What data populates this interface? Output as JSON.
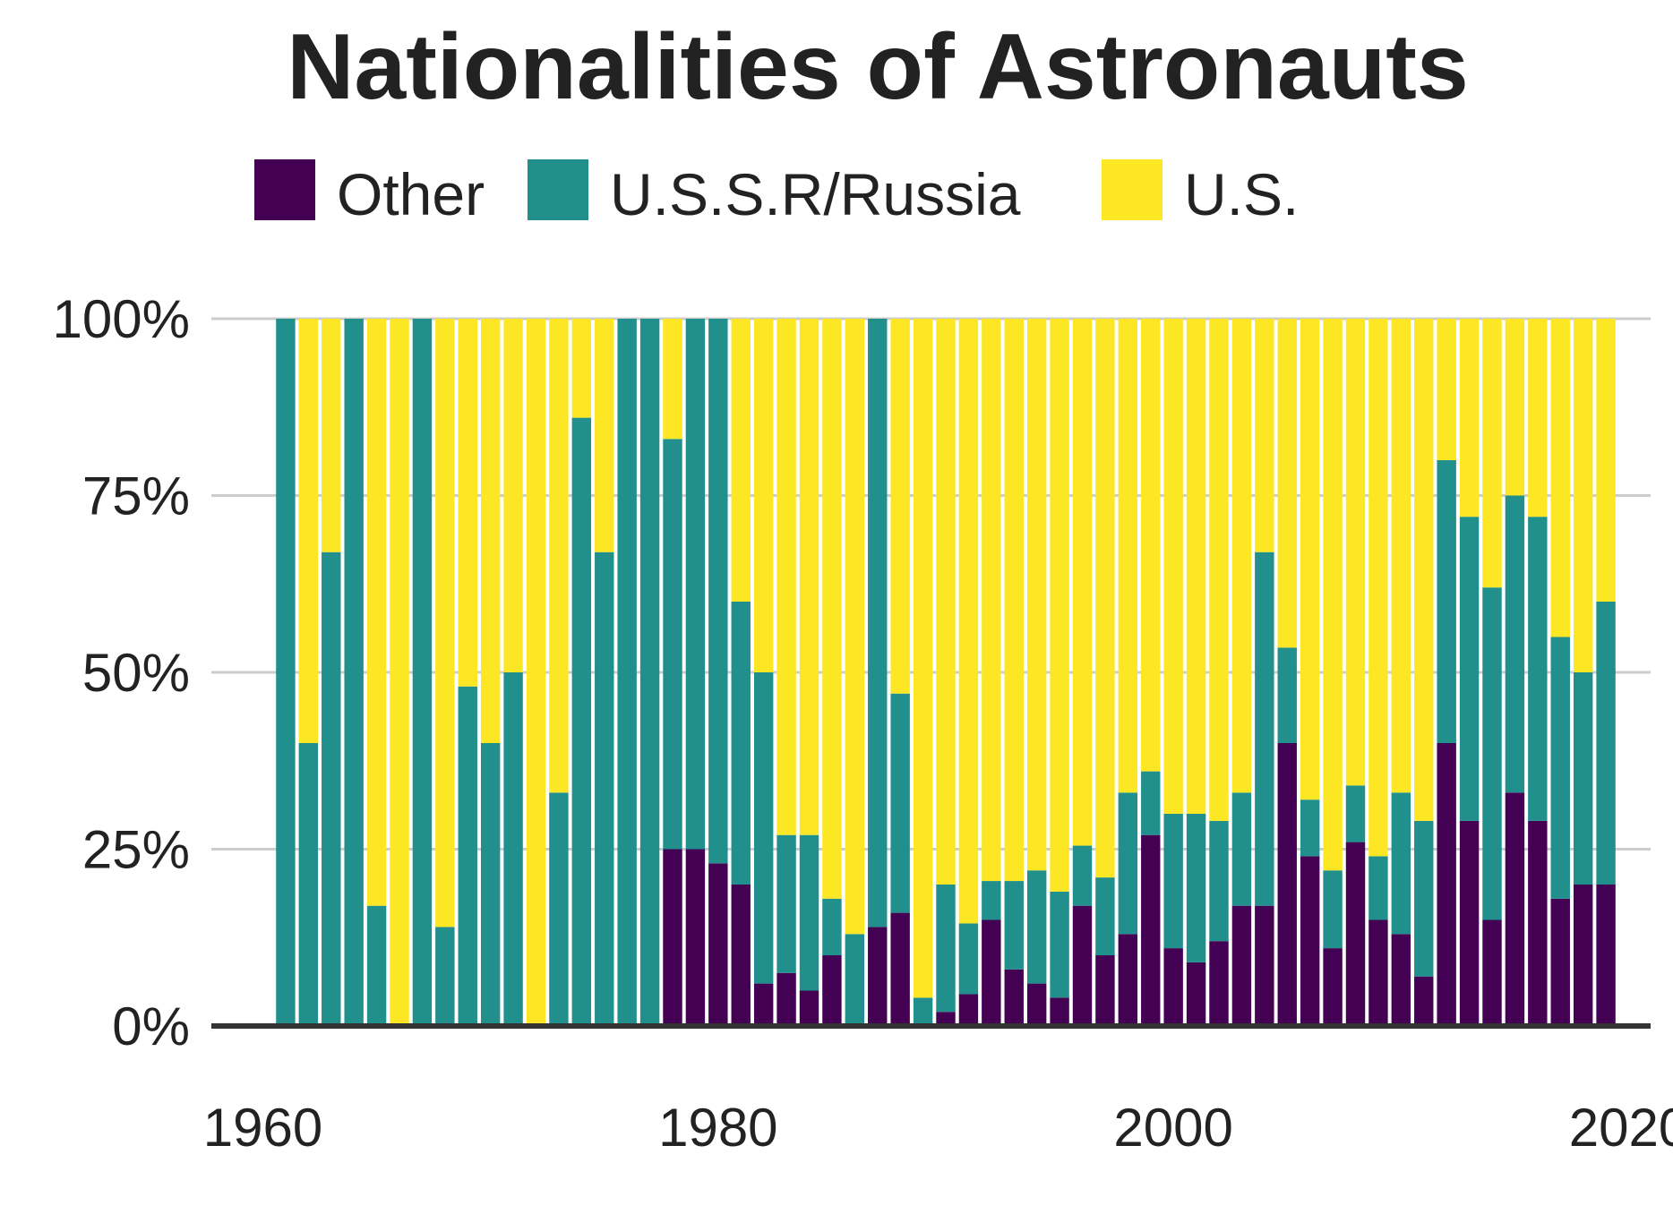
{
  "chart_data": {
    "type": "bar",
    "stacking": "percent",
    "title": "Nationalities of Astronauts",
    "xlabel": "",
    "ylabel": "",
    "legend_position": "top",
    "grid": "horizontal",
    "ylim": [
      0,
      100
    ],
    "y_ticks": [
      "0%",
      "25%",
      "50%",
      "75%",
      "100%"
    ],
    "x_ticks": [
      "1960",
      "1980",
      "2000",
      "2020"
    ],
    "x_tick_values": [
      1960,
      1980,
      2000,
      2020
    ],
    "xlim": [
      1960,
      2020
    ],
    "x": [
      1961,
      1962,
      1963,
      1964,
      1965,
      1966,
      1967,
      1968,
      1969,
      1970,
      1971,
      1972,
      1973,
      1974,
      1975,
      1976,
      1977,
      1978,
      1979,
      1980,
      1981,
      1982,
      1983,
      1984,
      1985,
      1986,
      1987,
      1988,
      1989,
      1990,
      1991,
      1992,
      1993,
      1994,
      1995,
      1996,
      1997,
      1998,
      1999,
      2000,
      2001,
      2002,
      2003,
      2004,
      2005,
      2006,
      2007,
      2008,
      2009,
      2010,
      2011,
      2012,
      2013,
      2014,
      2015,
      2016,
      2017,
      2018,
      2019,
      2020
    ],
    "series": [
      {
        "name": "Other",
        "color": "#440154",
        "values": [
          0,
          0,
          0,
          0,
          0,
          0,
          0,
          0,
          0,
          0,
          0,
          0,
          0,
          0,
          0,
          0,
          0,
          25,
          25,
          23,
          20,
          6,
          7.5,
          5,
          10,
          0,
          14,
          16,
          0,
          2,
          4.5,
          15,
          8,
          6,
          4,
          17,
          10,
          13,
          27,
          11,
          9,
          12,
          17,
          17,
          40,
          24,
          11,
          26,
          15,
          13,
          7,
          40,
          29,
          15,
          33,
          29,
          18,
          20,
          20,
          null
        ],
        "visible_zero_placeholder": null
      },
      {
        "name": "U.S.S.R/Russia",
        "color": "#21908d",
        "values": [
          100,
          40,
          67,
          100,
          17,
          0,
          100,
          14,
          48,
          40,
          50,
          0,
          33,
          86,
          67,
          100,
          100,
          58,
          75,
          77,
          40,
          44,
          19.5,
          22,
          8,
          13,
          86,
          31,
          4,
          18,
          10,
          5.5,
          12.5,
          16,
          15,
          8.5,
          11,
          20,
          9,
          19,
          21,
          17,
          16,
          50,
          13.5,
          8,
          11,
          8,
          9,
          20,
          22,
          40,
          43,
          47,
          42,
          43,
          37,
          30,
          40,
          null
        ]
      },
      {
        "name": "U.S.",
        "color": "#fde725",
        "values": [
          0,
          60,
          33,
          0,
          83,
          100,
          0,
          86,
          52,
          60,
          50,
          100,
          67,
          14,
          33,
          0,
          0,
          17,
          0,
          0,
          40,
          50,
          73,
          73,
          82,
          87,
          0,
          53,
          96,
          80,
          85.5,
          79.5,
          79.5,
          78,
          81,
          74.5,
          79,
          67,
          64,
          70,
          70,
          71,
          67,
          33,
          46.5,
          68,
          78,
          66,
          76,
          67,
          71,
          20,
          28,
          38,
          25,
          28,
          45,
          50,
          40,
          null
        ]
      }
    ]
  }
}
